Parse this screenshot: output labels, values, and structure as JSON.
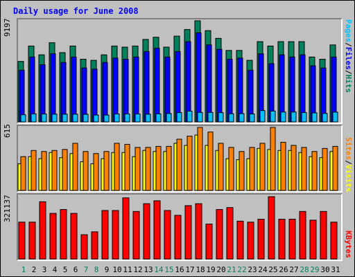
{
  "chart_data": {
    "type": "bar",
    "title": "Daily usage for June 2008",
    "categories": [
      "1",
      "2",
      "3",
      "4",
      "5",
      "6",
      "7",
      "8",
      "9",
      "10",
      "11",
      "12",
      "13",
      "14",
      "15",
      "16",
      "17",
      "18",
      "19",
      "20",
      "21",
      "22",
      "23",
      "24",
      "25",
      "26",
      "27",
      "28",
      "29",
      "30",
      "31"
    ],
    "weekend_days": [
      "1",
      "7",
      "8",
      "14",
      "15",
      "21",
      "22",
      "28",
      "29"
    ],
    "colors": {
      "hits": "#00805c",
      "files": "#0000ff",
      "pages": "#00c0ff",
      "visits": "#ffff00",
      "sites": "#ff8000",
      "kbytes": "#ff0000",
      "weekday_label": "#000000",
      "weekend_label": "#00805c",
      "title": "#0000ff"
    },
    "panels": [
      {
        "name": "hits-files-pages",
        "ymax_label": "9197",
        "ymax": 9197,
        "legend": [
          "Pages",
          "/",
          "Files",
          "/",
          "Hits"
        ],
        "series": [
          {
            "name": "Hits",
            "values": [
              5500,
              6900,
              6100,
              7200,
              6300,
              6900,
              5700,
              5600,
              6100,
              6900,
              6800,
              6900,
              7500,
              7700,
              6800,
              7800,
              8400,
              9197,
              8300,
              7600,
              6500,
              6500,
              5600,
              7300,
              6900,
              7300,
              7300,
              7300,
              5900,
              5700,
              7000
            ]
          },
          {
            "name": "Files",
            "values": [
              4700,
              5900,
              5200,
              6200,
              5400,
              5900,
              4900,
              4800,
              5400,
              5800,
              5700,
              5900,
              6400,
              6700,
              5900,
              6400,
              7300,
              8100,
              7000,
              6600,
              5700,
              5800,
              4700,
              6200,
              5300,
              6100,
              5900,
              6100,
              5100,
              4900,
              5900
            ]
          },
          {
            "name": "Pages",
            "values": [
              650,
              730,
              720,
              700,
              700,
              700,
              690,
              620,
              620,
              720,
              720,
              720,
              700,
              730,
              760,
              840,
              980,
              860,
              860,
              840,
              740,
              750,
              720,
              1030,
              990,
              900,
              900,
              850,
              820,
              770,
              890
            ]
          }
        ]
      },
      {
        "name": "sites-visits",
        "ymax_label": "615",
        "ymax": 615,
        "legend": [
          "Sites",
          "/",
          "Visits"
        ],
        "series": [
          {
            "name": "Visits",
            "values": [
              260,
              330,
              310,
              370,
              320,
              360,
              280,
              260,
              310,
              370,
              370,
              330,
              390,
              380,
              380,
              460,
              440,
              540,
              440,
              390,
              310,
              300,
              310,
              410,
              400,
              390,
              390,
              370,
              330,
              320,
              380
            ]
          },
          {
            "name": "Sites",
            "values": [
              330,
              390,
              380,
              390,
              400,
              460,
              380,
              360,
              380,
              460,
              450,
              420,
              420,
              430,
              430,
              500,
              530,
              615,
              570,
              460,
              420,
              380,
              420,
              460,
              615,
              470,
              440,
              420,
              380,
              410,
              430
            ]
          }
        ]
      },
      {
        "name": "kbytes",
        "ymax_label": "321137",
        "ymax": 321137,
        "legend": [
          "KBytes"
        ],
        "series": [
          {
            "name": "KBytes",
            "values": [
              190000,
              190000,
              295000,
              235000,
              255000,
              235000,
              125000,
              140000,
              250000,
              250000,
              315000,
              245000,
              285000,
              300000,
              250000,
              225000,
              275000,
              285000,
              180000,
              255000,
              265000,
              195000,
              190000,
              205000,
              321137,
              205000,
              205000,
              245000,
              200000,
              245000,
              190000
            ]
          }
        ]
      }
    ]
  }
}
